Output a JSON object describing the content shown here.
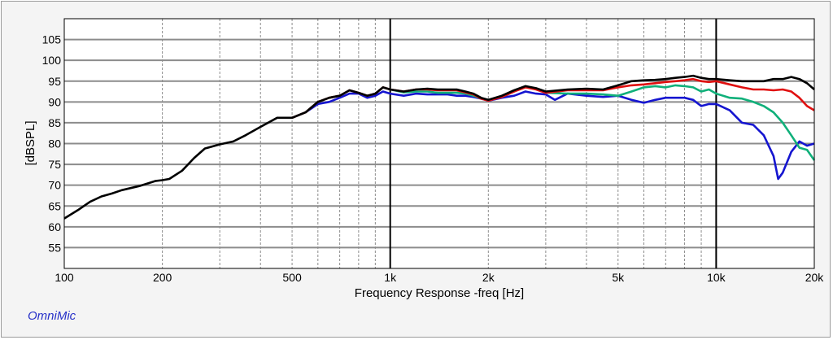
{
  "brand_label": "OmniMic",
  "chart_data": {
    "type": "line",
    "title": "",
    "xlabel": "Frequency Response -freq [Hz]",
    "ylabel": "[dBSPL]",
    "xscale": "log",
    "xlim": [
      100,
      20000
    ],
    "ylim": [
      50,
      110
    ],
    "grid": true,
    "x_ticks": [
      {
        "value": 100,
        "label": "100"
      },
      {
        "value": 200,
        "label": "200"
      },
      {
        "value": 500,
        "label": "500"
      },
      {
        "value": 1000,
        "label": "1k"
      },
      {
        "value": 2000,
        "label": "2k"
      },
      {
        "value": 5000,
        "label": "5k"
      },
      {
        "value": 10000,
        "label": "10k"
      },
      {
        "value": 20000,
        "label": "20k"
      }
    ],
    "y_ticks": [
      55,
      60,
      65,
      70,
      75,
      80,
      85,
      90,
      95,
      100,
      105
    ],
    "colors": {
      "black": "#000000",
      "red": "#e01010",
      "green": "#10b07a",
      "blue": "#1515d0",
      "grid": "#8c8c8c",
      "decade": "#000000"
    },
    "series": [
      {
        "color": "#000000",
        "points": [
          [
            100,
            62
          ],
          [
            110,
            64
          ],
          [
            120,
            66
          ],
          [
            130,
            67.3
          ],
          [
            140,
            68
          ],
          [
            150,
            68.8
          ],
          [
            170,
            69.8
          ],
          [
            190,
            71
          ],
          [
            200,
            71.2
          ],
          [
            210,
            71.5
          ],
          [
            230,
            73.5
          ],
          [
            250,
            76.5
          ],
          [
            270,
            78.8
          ],
          [
            300,
            79.8
          ],
          [
            330,
            80.5
          ],
          [
            360,
            82
          ],
          [
            400,
            84
          ],
          [
            450,
            86.2
          ],
          [
            500,
            86.2
          ],
          [
            550,
            87.5
          ],
          [
            600,
            90
          ],
          [
            650,
            91
          ],
          [
            700,
            91.5
          ],
          [
            750,
            92.8
          ],
          [
            800,
            92.2
          ],
          [
            850,
            91.5
          ],
          [
            900,
            92
          ],
          [
            950,
            93.5
          ],
          [
            1000,
            93
          ],
          [
            1100,
            92.5
          ],
          [
            1200,
            93
          ],
          [
            1300,
            93.2
          ],
          [
            1400,
            93
          ],
          [
            1500,
            93
          ],
          [
            1600,
            93
          ],
          [
            1700,
            92.5
          ],
          [
            1800,
            92
          ],
          [
            1900,
            91
          ],
          [
            2000,
            90.5
          ],
          [
            2200,
            91.5
          ],
          [
            2400,
            92.8
          ],
          [
            2600,
            93.8
          ],
          [
            2800,
            93.3
          ],
          [
            3000,
            92.5
          ],
          [
            3500,
            93
          ],
          [
            4000,
            93.2
          ],
          [
            4500,
            93
          ],
          [
            5000,
            94
          ],
          [
            5500,
            95
          ],
          [
            6000,
            95.2
          ],
          [
            6500,
            95.3
          ],
          [
            7000,
            95.5
          ],
          [
            7500,
            95.8
          ],
          [
            8000,
            96
          ],
          [
            8500,
            96.3
          ],
          [
            9000,
            95.8
          ],
          [
            9500,
            95.5
          ],
          [
            10000,
            95.5
          ],
          [
            11000,
            95.2
          ],
          [
            12000,
            95
          ],
          [
            13000,
            95
          ],
          [
            14000,
            95
          ],
          [
            15000,
            95.5
          ],
          [
            16000,
            95.5
          ],
          [
            17000,
            96
          ],
          [
            18000,
            95.5
          ],
          [
            19000,
            94.5
          ],
          [
            20000,
            93
          ]
        ]
      },
      {
        "color": "#e01010",
        "points": [
          [
            500,
            86.2
          ],
          [
            550,
            87.5
          ],
          [
            600,
            90
          ],
          [
            650,
            91
          ],
          [
            700,
            91.5
          ],
          [
            750,
            92.8
          ],
          [
            800,
            92.2
          ],
          [
            850,
            91.5
          ],
          [
            900,
            92
          ],
          [
            950,
            93.5
          ],
          [
            1000,
            93
          ],
          [
            1100,
            92.5
          ],
          [
            1200,
            93
          ],
          [
            1300,
            93
          ],
          [
            1400,
            92.8
          ],
          [
            1500,
            92.8
          ],
          [
            1600,
            92.8
          ],
          [
            1700,
            92.3
          ],
          [
            1800,
            91.8
          ],
          [
            1900,
            90.8
          ],
          [
            2000,
            90.3
          ],
          [
            2200,
            91.2
          ],
          [
            2400,
            92.5
          ],
          [
            2600,
            93.5
          ],
          [
            2800,
            93
          ],
          [
            3000,
            92.2
          ],
          [
            3500,
            92.8
          ],
          [
            4000,
            92.8
          ],
          [
            4500,
            92.8
          ],
          [
            5000,
            93.5
          ],
          [
            5500,
            94
          ],
          [
            6000,
            94.2
          ],
          [
            6500,
            94.5
          ],
          [
            7000,
            94.8
          ],
          [
            7500,
            95
          ],
          [
            8000,
            95.2
          ],
          [
            8500,
            95.5
          ],
          [
            9000,
            95
          ],
          [
            9500,
            94.8
          ],
          [
            10000,
            95
          ],
          [
            11000,
            94.2
          ],
          [
            12000,
            93.5
          ],
          [
            13000,
            93
          ],
          [
            14000,
            93
          ],
          [
            15000,
            92.8
          ],
          [
            16000,
            93
          ],
          [
            17000,
            92.5
          ],
          [
            18000,
            91
          ],
          [
            19000,
            89
          ],
          [
            20000,
            88
          ]
        ]
      },
      {
        "color": "#10b07a",
        "points": [
          [
            500,
            86.2
          ],
          [
            550,
            87.5
          ],
          [
            600,
            90
          ],
          [
            650,
            91
          ],
          [
            700,
            91.5
          ],
          [
            750,
            92.8
          ],
          [
            800,
            92.2
          ],
          [
            850,
            91.5
          ],
          [
            900,
            92
          ],
          [
            950,
            93.5
          ],
          [
            1000,
            93
          ],
          [
            1100,
            92.3
          ],
          [
            1200,
            92.5
          ],
          [
            1300,
            92.5
          ],
          [
            1400,
            92.2
          ],
          [
            1500,
            92.2
          ],
          [
            1600,
            92.2
          ],
          [
            1700,
            92
          ],
          [
            1800,
            91.5
          ],
          [
            1900,
            90.8
          ],
          [
            2000,
            90.5
          ],
          [
            2200,
            91.2
          ],
          [
            2400,
            92.5
          ],
          [
            2600,
            93.8
          ],
          [
            2800,
            93.2
          ],
          [
            3000,
            92.2
          ],
          [
            3500,
            92
          ],
          [
            4000,
            92
          ],
          [
            4500,
            91.8
          ],
          [
            5000,
            91.5
          ],
          [
            5500,
            92.5
          ],
          [
            6000,
            93.5
          ],
          [
            6500,
            93.8
          ],
          [
            7000,
            93.5
          ],
          [
            7500,
            94
          ],
          [
            8000,
            93.8
          ],
          [
            8500,
            93.5
          ],
          [
            9000,
            92.5
          ],
          [
            9500,
            93
          ],
          [
            10000,
            92
          ],
          [
            11000,
            91
          ],
          [
            12000,
            90.8
          ],
          [
            13000,
            90
          ],
          [
            14000,
            89
          ],
          [
            15000,
            87.5
          ],
          [
            16000,
            85
          ],
          [
            17000,
            82
          ],
          [
            18000,
            79
          ],
          [
            19000,
            78.5
          ],
          [
            20000,
            76
          ]
        ]
      },
      {
        "color": "#1515d0",
        "points": [
          [
            500,
            86.2
          ],
          [
            550,
            87.5
          ],
          [
            600,
            89.5
          ],
          [
            650,
            90
          ],
          [
            700,
            91
          ],
          [
            750,
            92
          ],
          [
            800,
            92
          ],
          [
            850,
            91
          ],
          [
            900,
            91.5
          ],
          [
            950,
            92.5
          ],
          [
            1000,
            92
          ],
          [
            1100,
            91.5
          ],
          [
            1200,
            92
          ],
          [
            1300,
            91.8
          ],
          [
            1400,
            91.8
          ],
          [
            1500,
            91.8
          ],
          [
            1600,
            91.5
          ],
          [
            1700,
            91.5
          ],
          [
            1800,
            91.2
          ],
          [
            1900,
            90.8
          ],
          [
            2000,
            90.3
          ],
          [
            2200,
            91
          ],
          [
            2400,
            91.5
          ],
          [
            2600,
            92.5
          ],
          [
            2800,
            92
          ],
          [
            3000,
            91.8
          ],
          [
            3200,
            90.5
          ],
          [
            3500,
            92
          ],
          [
            4000,
            91.5
          ],
          [
            4500,
            91.2
          ],
          [
            5000,
            91.5
          ],
          [
            5500,
            90.5
          ],
          [
            6000,
            89.8
          ],
          [
            6500,
            90.5
          ],
          [
            7000,
            91
          ],
          [
            7500,
            91
          ],
          [
            8000,
            91
          ],
          [
            8500,
            90.5
          ],
          [
            9000,
            89
          ],
          [
            9500,
            89.5
          ],
          [
            10000,
            89.5
          ],
          [
            11000,
            88
          ],
          [
            12000,
            85
          ],
          [
            13000,
            84.5
          ],
          [
            14000,
            82
          ],
          [
            15000,
            77
          ],
          [
            15500,
            71.5
          ],
          [
            16000,
            73
          ],
          [
            17000,
            78
          ],
          [
            18000,
            80.5
          ],
          [
            19000,
            79.5
          ],
          [
            20000,
            80
          ]
        ]
      }
    ]
  }
}
